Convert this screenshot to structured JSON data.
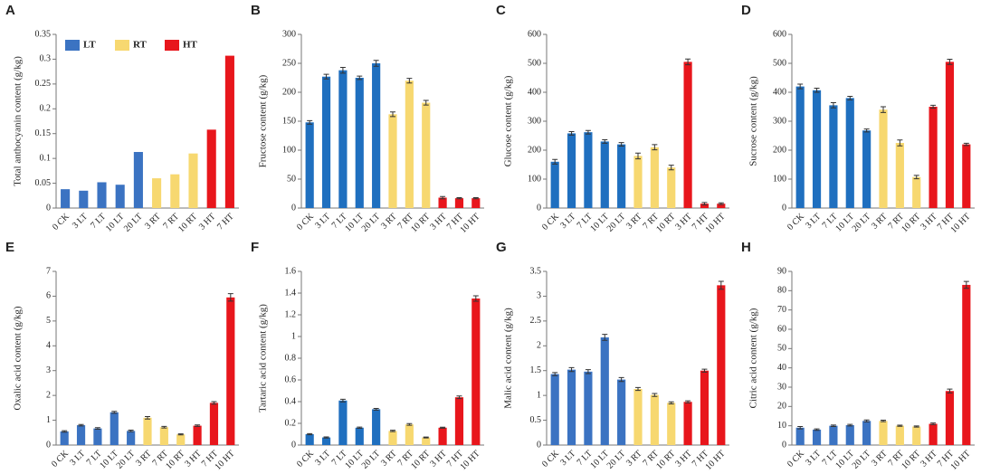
{
  "chart_data": [
    {
      "type": "bar",
      "panel": "A",
      "ylabel": "Total anthocyanin content (g/kg)",
      "categories": [
        "0 CK",
        "3 LT",
        "7 LT",
        "10 LT",
        "20 LT",
        "3 RT",
        "7 RT",
        "10 RT",
        "3 HT",
        "7 HT"
      ],
      "values": [
        0.038,
        0.035,
        0.052,
        0.047,
        0.113,
        0.06,
        0.068,
        0.11,
        0.158,
        0.307
      ],
      "bar_colors": [
        "#3b73c2",
        "#3b73c2",
        "#3b73c2",
        "#3b73c2",
        "#3b73c2",
        "#f7d870",
        "#f7d870",
        "#f7d870",
        "#e8161c",
        "#e8161c"
      ],
      "ylim": [
        0,
        0.35
      ],
      "yticks": [
        0,
        0.05,
        0.1,
        0.15,
        0.2,
        0.25,
        0.3,
        0.35
      ],
      "legend": [
        {
          "name": "LT",
          "color": "#3b73c2"
        },
        {
          "name": "RT",
          "color": "#f7d870"
        },
        {
          "name": "HT",
          "color": "#e8161c"
        }
      ]
    },
    {
      "type": "bar",
      "panel": "B",
      "ylabel": "Fructose content (g/kg)",
      "categories": [
        "0 CK",
        "3 LT",
        "7 LT",
        "10 LT",
        "20 LT",
        "3 RT",
        "7 RT",
        "10 RT",
        "3 HT",
        "7 HT",
        "10 HT"
      ],
      "values": [
        148,
        227,
        238,
        225,
        250,
        162,
        220,
        182,
        18,
        17,
        17
      ],
      "errors": [
        3,
        4,
        5,
        3,
        5,
        4,
        4,
        4,
        2,
        1,
        1
      ],
      "bar_colors": [
        "#1f6fbf",
        "#1f6fbf",
        "#1f6fbf",
        "#1f6fbf",
        "#1f6fbf",
        "#f7d870",
        "#f7d870",
        "#f7d870",
        "#e8161c",
        "#e8161c",
        "#e8161c"
      ],
      "ylim": [
        0,
        300
      ],
      "yticks": [
        0,
        50,
        100,
        150,
        200,
        250,
        300
      ]
    },
    {
      "type": "bar",
      "panel": "C",
      "ylabel": "Glucose content (g/kg)",
      "categories": [
        "0 CK",
        "3 LT",
        "7 LT",
        "10 LT",
        "20 LT",
        "3 RT",
        "7 RT",
        "10 RT",
        "3 HT",
        "7 HT",
        "10 HT"
      ],
      "values": [
        160,
        258,
        262,
        230,
        220,
        180,
        210,
        140,
        505,
        15,
        15
      ],
      "errors": [
        8,
        6,
        6,
        6,
        6,
        10,
        9,
        8,
        10,
        4,
        3
      ],
      "bar_colors": [
        "#1f6fbf",
        "#1f6fbf",
        "#1f6fbf",
        "#1f6fbf",
        "#1f6fbf",
        "#f7d870",
        "#f7d870",
        "#f7d870",
        "#e8161c",
        "#e8161c",
        "#e8161c"
      ],
      "ylim": [
        0,
        600
      ],
      "yticks": [
        0,
        100,
        200,
        300,
        400,
        500,
        600
      ]
    },
    {
      "type": "bar",
      "panel": "D",
      "ylabel": "Sucrose content  (g/kg)",
      "categories": [
        "0 CK",
        "3 LT",
        "7 LT",
        "10 LT",
        "20 LT",
        "3 RT",
        "7 RT",
        "10 RT",
        "3 HT",
        "7 HT",
        "10 HT"
      ],
      "values": [
        420,
        407,
        355,
        380,
        268,
        340,
        225,
        107,
        350,
        505,
        220
      ],
      "errors": [
        8,
        7,
        9,
        6,
        5,
        10,
        10,
        6,
        5,
        9,
        4
      ],
      "bar_colors": [
        "#1f6fbf",
        "#1f6fbf",
        "#1f6fbf",
        "#1f6fbf",
        "#1f6fbf",
        "#f7d870",
        "#f7d870",
        "#f7d870",
        "#e8161c",
        "#e8161c",
        "#e8161c"
      ],
      "ylim": [
        0,
        600
      ],
      "yticks": [
        0,
        100,
        200,
        300,
        400,
        500,
        600
      ]
    },
    {
      "type": "bar",
      "panel": "E",
      "ylabel": "Oxalic acid content (g/kg)",
      "categories": [
        "0 CK",
        "3 LT",
        "7 LT",
        "10 LT",
        "20 LT",
        "3 RT",
        "7 RT",
        "10 RT",
        "3 HT",
        "7 HT",
        "10 HT"
      ],
      "values": [
        0.55,
        0.8,
        0.67,
        1.32,
        0.57,
        1.1,
        0.72,
        0.43,
        0.78,
        1.7,
        5.95
      ],
      "errors": [
        0.03,
        0.03,
        0.03,
        0.04,
        0.03,
        0.05,
        0.03,
        0.02,
        0.03,
        0.05,
        0.15
      ],
      "bar_colors": [
        "#3b73c2",
        "#3b73c2",
        "#3b73c2",
        "#3b73c2",
        "#3b73c2",
        "#f7d870",
        "#f7d870",
        "#f7d870",
        "#e8161c",
        "#e8161c",
        "#e8161c"
      ],
      "ylim": [
        0,
        7
      ],
      "yticks": [
        0,
        1,
        2,
        3,
        4,
        5,
        6,
        7
      ]
    },
    {
      "type": "bar",
      "panel": "F",
      "ylabel": "Tartaric acid content (g/kg)",
      "categories": [
        "0 CK",
        "3 LT",
        "7 LT",
        "10 LT",
        "20 LT",
        "3 RT",
        "7 RT",
        "10 RT",
        "3 HT",
        "7 HT",
        "10 HT"
      ],
      "values": [
        0.1,
        0.07,
        0.41,
        0.16,
        0.33,
        0.13,
        0.19,
        0.07,
        0.16,
        0.44,
        1.35
      ],
      "errors": [
        0.005,
        0.005,
        0.012,
        0.006,
        0.008,
        0.006,
        0.008,
        0.004,
        0.005,
        0.012,
        0.025
      ],
      "bar_colors": [
        "#1f6fbf",
        "#1f6fbf",
        "#1f6fbf",
        "#1f6fbf",
        "#1f6fbf",
        "#f7d870",
        "#f7d870",
        "#f7d870",
        "#e8161c",
        "#e8161c",
        "#e8161c"
      ],
      "ylim": [
        0,
        1.6
      ],
      "yticks": [
        0,
        0.2,
        0.4,
        0.6,
        0.8,
        1,
        1.2,
        1.4,
        1.6
      ]
    },
    {
      "type": "bar",
      "panel": "G",
      "ylabel": "Malic acid content (g/kg)",
      "categories": [
        "0 CK",
        "3 LT",
        "7 LT",
        "10 LT",
        "20 LT",
        "3 RT",
        "7 RT",
        "10 RT",
        "3 HT",
        "7 HT",
        "10 HT"
      ],
      "values": [
        1.43,
        1.52,
        1.48,
        2.17,
        1.32,
        1.13,
        1.01,
        0.85,
        0.87,
        1.5,
        3.22
      ],
      "errors": [
        0.03,
        0.04,
        0.04,
        0.06,
        0.04,
        0.03,
        0.03,
        0.02,
        0.02,
        0.03,
        0.08
      ],
      "bar_colors": [
        "#3b73c2",
        "#3b73c2",
        "#3b73c2",
        "#3b73c2",
        "#3b73c2",
        "#f7d870",
        "#f7d870",
        "#f7d870",
        "#e8161c",
        "#e8161c",
        "#e8161c"
      ],
      "ylim": [
        0,
        3.5
      ],
      "yticks": [
        0,
        0.5,
        1,
        1.5,
        2,
        2.5,
        3,
        3.5
      ]
    },
    {
      "type": "bar",
      "panel": "H",
      "ylabel": "Citric acid content (g/kg)",
      "categories": [
        "0 CK",
        "3 LT",
        "7 LT",
        "10 LT",
        "20 LT",
        "3 RT",
        "7 RT",
        "10 RT",
        "3 HT",
        "7 HT",
        "10 HT"
      ],
      "values": [
        9,
        8,
        10,
        10.3,
        12.5,
        12.5,
        10,
        9.6,
        11,
        28,
        83
      ],
      "errors": [
        0.6,
        0.4,
        0.4,
        0.4,
        0.5,
        0.4,
        0.3,
        0.3,
        0.4,
        1,
        1.8
      ],
      "bar_colors": [
        "#3b73c2",
        "#3b73c2",
        "#3b73c2",
        "#3b73c2",
        "#3b73c2",
        "#f7d870",
        "#f7d870",
        "#f7d870",
        "#e8161c",
        "#e8161c",
        "#e8161c"
      ],
      "ylim": [
        0,
        90
      ],
      "yticks": [
        0,
        10,
        20,
        30,
        40,
        50,
        60,
        70,
        80,
        90
      ]
    }
  ]
}
